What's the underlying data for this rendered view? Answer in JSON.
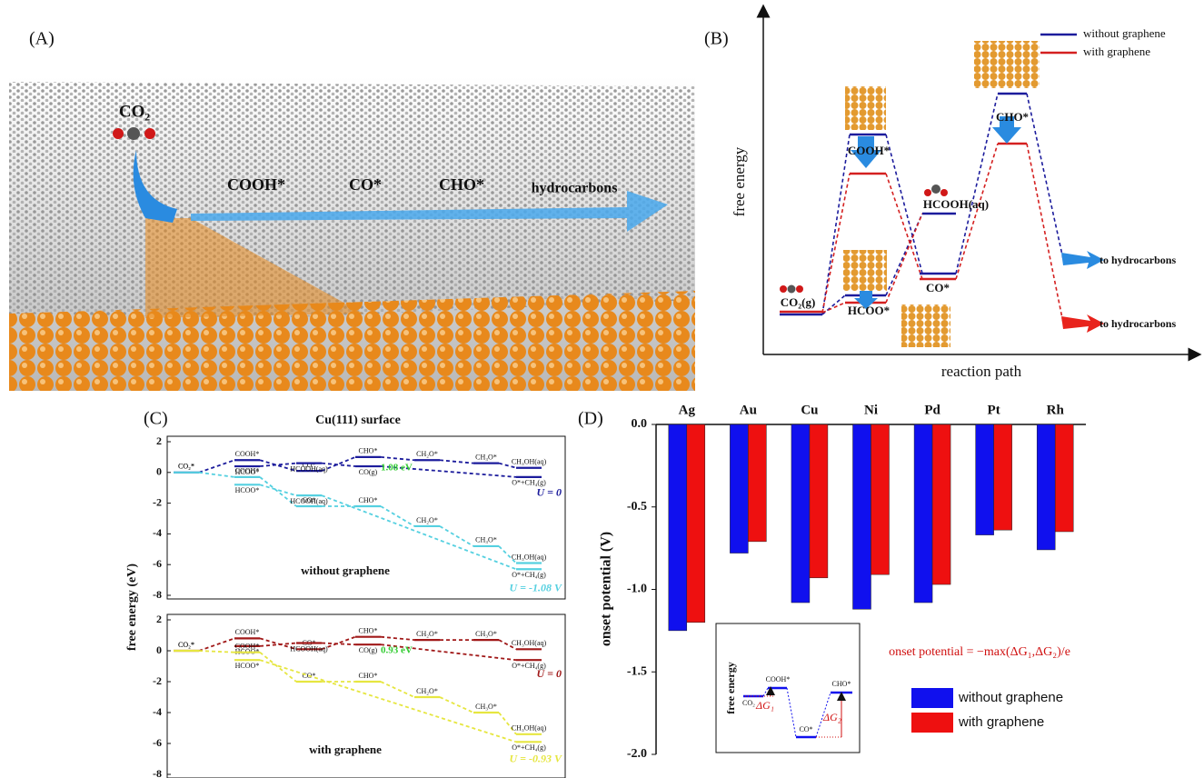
{
  "panel_a": {
    "label": "(A)",
    "molecule": "CO₂",
    "intermediates": [
      "COOH*",
      "CO*",
      "CHO*"
    ],
    "product": "hydrocarbons"
  },
  "panel_b": {
    "label": "(B)",
    "y_label": "free energy",
    "x_label": "reaction path",
    "legend": [
      {
        "name": "without graphene",
        "color": "#1c1c9c"
      },
      {
        "name": "with graphene",
        "color": "#d42020"
      }
    ],
    "states": [
      "CO₂(g)",
      "HCOO*",
      "COOH*",
      "HCOOH(aq)",
      "CO*",
      "CHO*"
    ],
    "outcomes": [
      "to hydrocarbons",
      "to hydrocarbons"
    ]
  },
  "chart_data": [
    {
      "type": "energy",
      "label": "(C)",
      "title": "Cu(111) surface",
      "subtitle": "without graphene",
      "y_label": "free energy (eV)",
      "ylim": [
        -8,
        2
      ],
      "yticks": [
        -8,
        -6,
        -4,
        -2,
        0,
        2
      ],
      "annotation": {
        "text": "1.08 eV",
        "color": "#33cc33"
      },
      "series": [
        {
          "name": "U = 0",
          "color": "#1c1c9c",
          "levels": [
            {
              "step": 0,
              "label": "CO₂*",
              "value": 0
            },
            {
              "step": 1,
              "label": "COOH*",
              "value": 0.8
            },
            {
              "step": 2,
              "label": "CO*",
              "value": 0.1
            },
            {
              "step": 3,
              "label": "CHO*",
              "value": 1.0
            },
            {
              "step": 4,
              "label": "CH₂O*",
              "value": 0.8
            },
            {
              "step": 5,
              "label": "CH₃O*",
              "value": 0.6
            },
            {
              "step": 6,
              "label": "CH₃OH(aq)",
              "value": 0.3
            }
          ]
        },
        {
          "color": "#1c1c9c",
          "levels": [
            {
              "step": 1,
              "label": "HCOO*",
              "value": 0.4
            },
            {
              "step": 2,
              "label": "HCOOH(aq)",
              "value": 0.6
            },
            {
              "step": 3,
              "label": "CO(g)",
              "value": 0.4
            },
            {
              "step": 6,
              "label": "O*+CH₄(g)",
              "value": -0.3
            }
          ]
        },
        {
          "name": "U = -1.08 V",
          "color": "#55d0e0",
          "levels": [
            {
              "step": 0,
              "label": "CO₂*",
              "value": 0
            },
            {
              "step": 1,
              "label": "COOH*",
              "value": -0.3
            },
            {
              "step": 2,
              "label": "CO*",
              "value": -2.2
            },
            {
              "step": 3,
              "label": "CHO*",
              "value": -2.2
            },
            {
              "step": 4,
              "label": "CH₂O*",
              "value": -3.5
            },
            {
              "step": 5,
              "label": "CH₃O*",
              "value": -4.8
            },
            {
              "step": 6,
              "label": "CH₃OH(aq)",
              "value": -5.9
            }
          ]
        },
        {
          "color": "#55d0e0",
          "levels": [
            {
              "step": 1,
              "label": "HCOO*",
              "value": -0.8
            },
            {
              "step": 2,
              "label": "HCOOH(aq)",
              "value": -1.5
            },
            {
              "step": 6,
              "label": "O*+CH₄(g)",
              "value": -6.3
            }
          ]
        }
      ]
    },
    {
      "type": "energy",
      "subtitle": "with graphene",
      "ylim": [
        -8,
        2
      ],
      "yticks": [
        -8,
        -6,
        -4,
        -2,
        0,
        2
      ],
      "annotation": {
        "text": "0.93 eV",
        "color": "#33cc33"
      },
      "series": [
        {
          "name": "U = 0",
          "color": "#a01818",
          "levels": [
            {
              "step": 0,
              "label": "CO₂*",
              "value": 0
            },
            {
              "step": 1,
              "label": "COOH*",
              "value": 0.8
            },
            {
              "step": 2,
              "label": "CO*",
              "value": 0.1
            },
            {
              "step": 3,
              "label": "CHO*",
              "value": 0.9
            },
            {
              "step": 4,
              "label": "CH₂O*",
              "value": 0.7
            },
            {
              "step": 5,
              "label": "CH₃O*",
              "value": 0.7
            },
            {
              "step": 6,
              "label": "CH₃OH(aq)",
              "value": 0.1
            }
          ]
        },
        {
          "color": "#a01818",
          "levels": [
            {
              "step": 1,
              "label": "HCOO*",
              "value": 0.3
            },
            {
              "step": 2,
              "label": "HCOOH(aq)",
              "value": 0.5
            },
            {
              "step": 3,
              "label": "CO(g)",
              "value": 0.4
            },
            {
              "step": 6,
              "label": "O*+CH₄(g)",
              "value": -0.6
            }
          ]
        },
        {
          "name": "U = -0.93 V",
          "color": "#e6e640",
          "levels": [
            {
              "step": 0,
              "label": "CO₂*",
              "value": 0
            },
            {
              "step": 1,
              "label": "COOH*",
              "value": -0.1
            },
            {
              "step": 2,
              "label": "CO*",
              "value": -2.0
            },
            {
              "step": 3,
              "label": "CHO*",
              "value": -2.0
            },
            {
              "step": 4,
              "label": "CH₂O*",
              "value": -3.0
            },
            {
              "step": 5,
              "label": "CH₃O*",
              "value": -4.0
            },
            {
              "step": 6,
              "label": "CH₃OH(aq)",
              "value": -5.4
            }
          ]
        },
        {
          "color": "#e6e640",
          "levels": [
            {
              "step": 1,
              "label": "HCOO*",
              "value": -0.6
            },
            {
              "step": 6,
              "label": "O*+CH₄(g)",
              "value": -5.9
            }
          ]
        }
      ]
    },
    {
      "type": "bar",
      "label": "(D)",
      "y_label": "onset potential (V)",
      "categories": [
        "Ag",
        "Au",
        "Cu",
        "Ni",
        "Pd",
        "Pt",
        "Rh"
      ],
      "series": [
        {
          "name": "without graphene",
          "color": "#1010ee",
          "values": [
            -1.25,
            -0.78,
            -1.08,
            -1.12,
            -1.08,
            -0.67,
            -0.76
          ]
        },
        {
          "name": "with graphene",
          "color": "#ee1010",
          "values": [
            -1.2,
            -0.71,
            -0.93,
            -0.91,
            -0.97,
            -0.64,
            -0.65
          ]
        }
      ],
      "ylim": [
        -2,
        0
      ],
      "yticks": [
        {
          "value": -2,
          "label": "-2.0"
        },
        -1.5,
        {
          "value": -1,
          "label": "-1.0"
        },
        -0.5,
        {
          "value": 0,
          "label": "0.0"
        }
      ],
      "legend": "lower right",
      "formula": "onset potential = −max(ΔG₁,ΔG₂)/e",
      "inset": {
        "y_label": "free energy",
        "states": [
          "CO₂",
          "COOH*",
          "CO*",
          "CHO*"
        ],
        "deltas": [
          "ΔG₁",
          "ΔG₂"
        ]
      }
    }
  ]
}
